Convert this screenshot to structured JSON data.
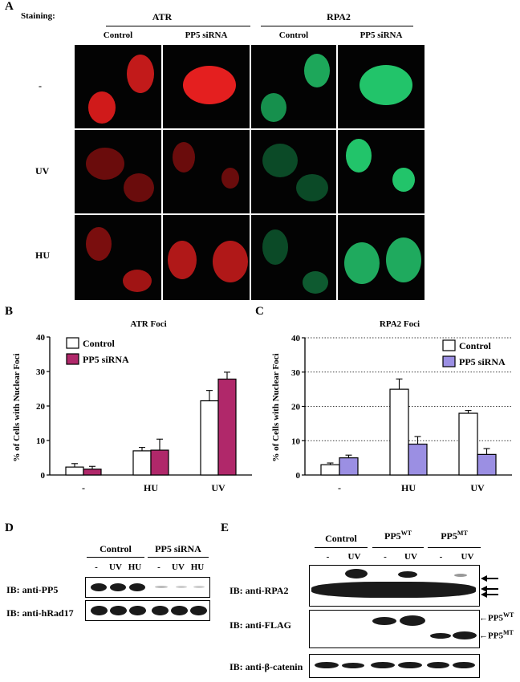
{
  "panel_a": {
    "label": "A",
    "staining_label": "Staining:",
    "groups": [
      "ATR",
      "RPA2"
    ],
    "columns": [
      "Control",
      "PP5 siRNA",
      "Control",
      "PP5 siRNA"
    ],
    "rows": [
      "-",
      "UV",
      "HU"
    ],
    "colors": {
      "atr": "#e41f1f",
      "rpa2": "#22c46a",
      "background": "#030303"
    }
  },
  "chart_data": [
    {
      "panel": "B",
      "type": "bar",
      "title": "ATR Foci",
      "ylabel": "% of Cells with Nuclear Foci",
      "xlabel": "",
      "categories": [
        "-",
        "HU",
        "UV"
      ],
      "series": [
        {
          "name": "Control",
          "values": [
            2.3,
            7.0,
            21.5
          ],
          "errors": [
            1.0,
            1.0,
            3.0
          ],
          "color": "#ffffff"
        },
        {
          "name": "PP5 siRNA",
          "values": [
            1.7,
            7.2,
            27.8
          ],
          "errors": [
            0.8,
            3.2,
            2.0
          ],
          "color": "#b0286a"
        }
      ],
      "ylim": [
        0,
        40
      ],
      "yticks": [
        "0",
        "10",
        "20",
        "30",
        "40"
      ],
      "grid": false,
      "legend": "top-left"
    },
    {
      "panel": "C",
      "type": "bar",
      "title": "RPA2 Foci",
      "ylabel": "% of Cells with Nuclear Foci",
      "xlabel": "",
      "categories": [
        "-",
        "HU",
        "UV"
      ],
      "series": [
        {
          "name": "Control",
          "values": [
            3.0,
            25.0,
            18.0
          ],
          "errors": [
            0.5,
            3.0,
            0.8
          ],
          "color": "#ffffff"
        },
        {
          "name": "PP5 siRNA",
          "values": [
            5.0,
            9.0,
            6.0
          ],
          "errors": [
            0.8,
            2.2,
            1.7
          ],
          "color": "#9b8fe3"
        }
      ],
      "ylim": [
        0,
        40
      ],
      "yticks": [
        "0",
        "10",
        "20",
        "30",
        "40"
      ],
      "grid": true,
      "legend": "top-right"
    }
  ],
  "panel_d": {
    "label": "D",
    "groups": [
      "Control",
      "PP5 siRNA"
    ],
    "lanes": [
      "-",
      "UV",
      "HU",
      "-",
      "UV",
      "HU"
    ],
    "blots": [
      "IB: anti-PP5",
      "IB: anti-hRad17"
    ]
  },
  "panel_e": {
    "label": "E",
    "groups": [
      {
        "name": "Control",
        "sup": ""
      },
      {
        "name": "PP5",
        "sup": "WT"
      },
      {
        "name": "PP5",
        "sup": "MT"
      }
    ],
    "lanes": [
      "-",
      "UV",
      "-",
      "UV",
      "-",
      "UV"
    ],
    "blots": [
      "IB: anti-RPA2",
      "IB: anti-FLAG",
      "IB: anti-β-catenin"
    ],
    "flag_markers": [
      {
        "name": "PP5",
        "sup": "WT"
      },
      {
        "name": "PP5",
        "sup": "MT"
      }
    ]
  }
}
